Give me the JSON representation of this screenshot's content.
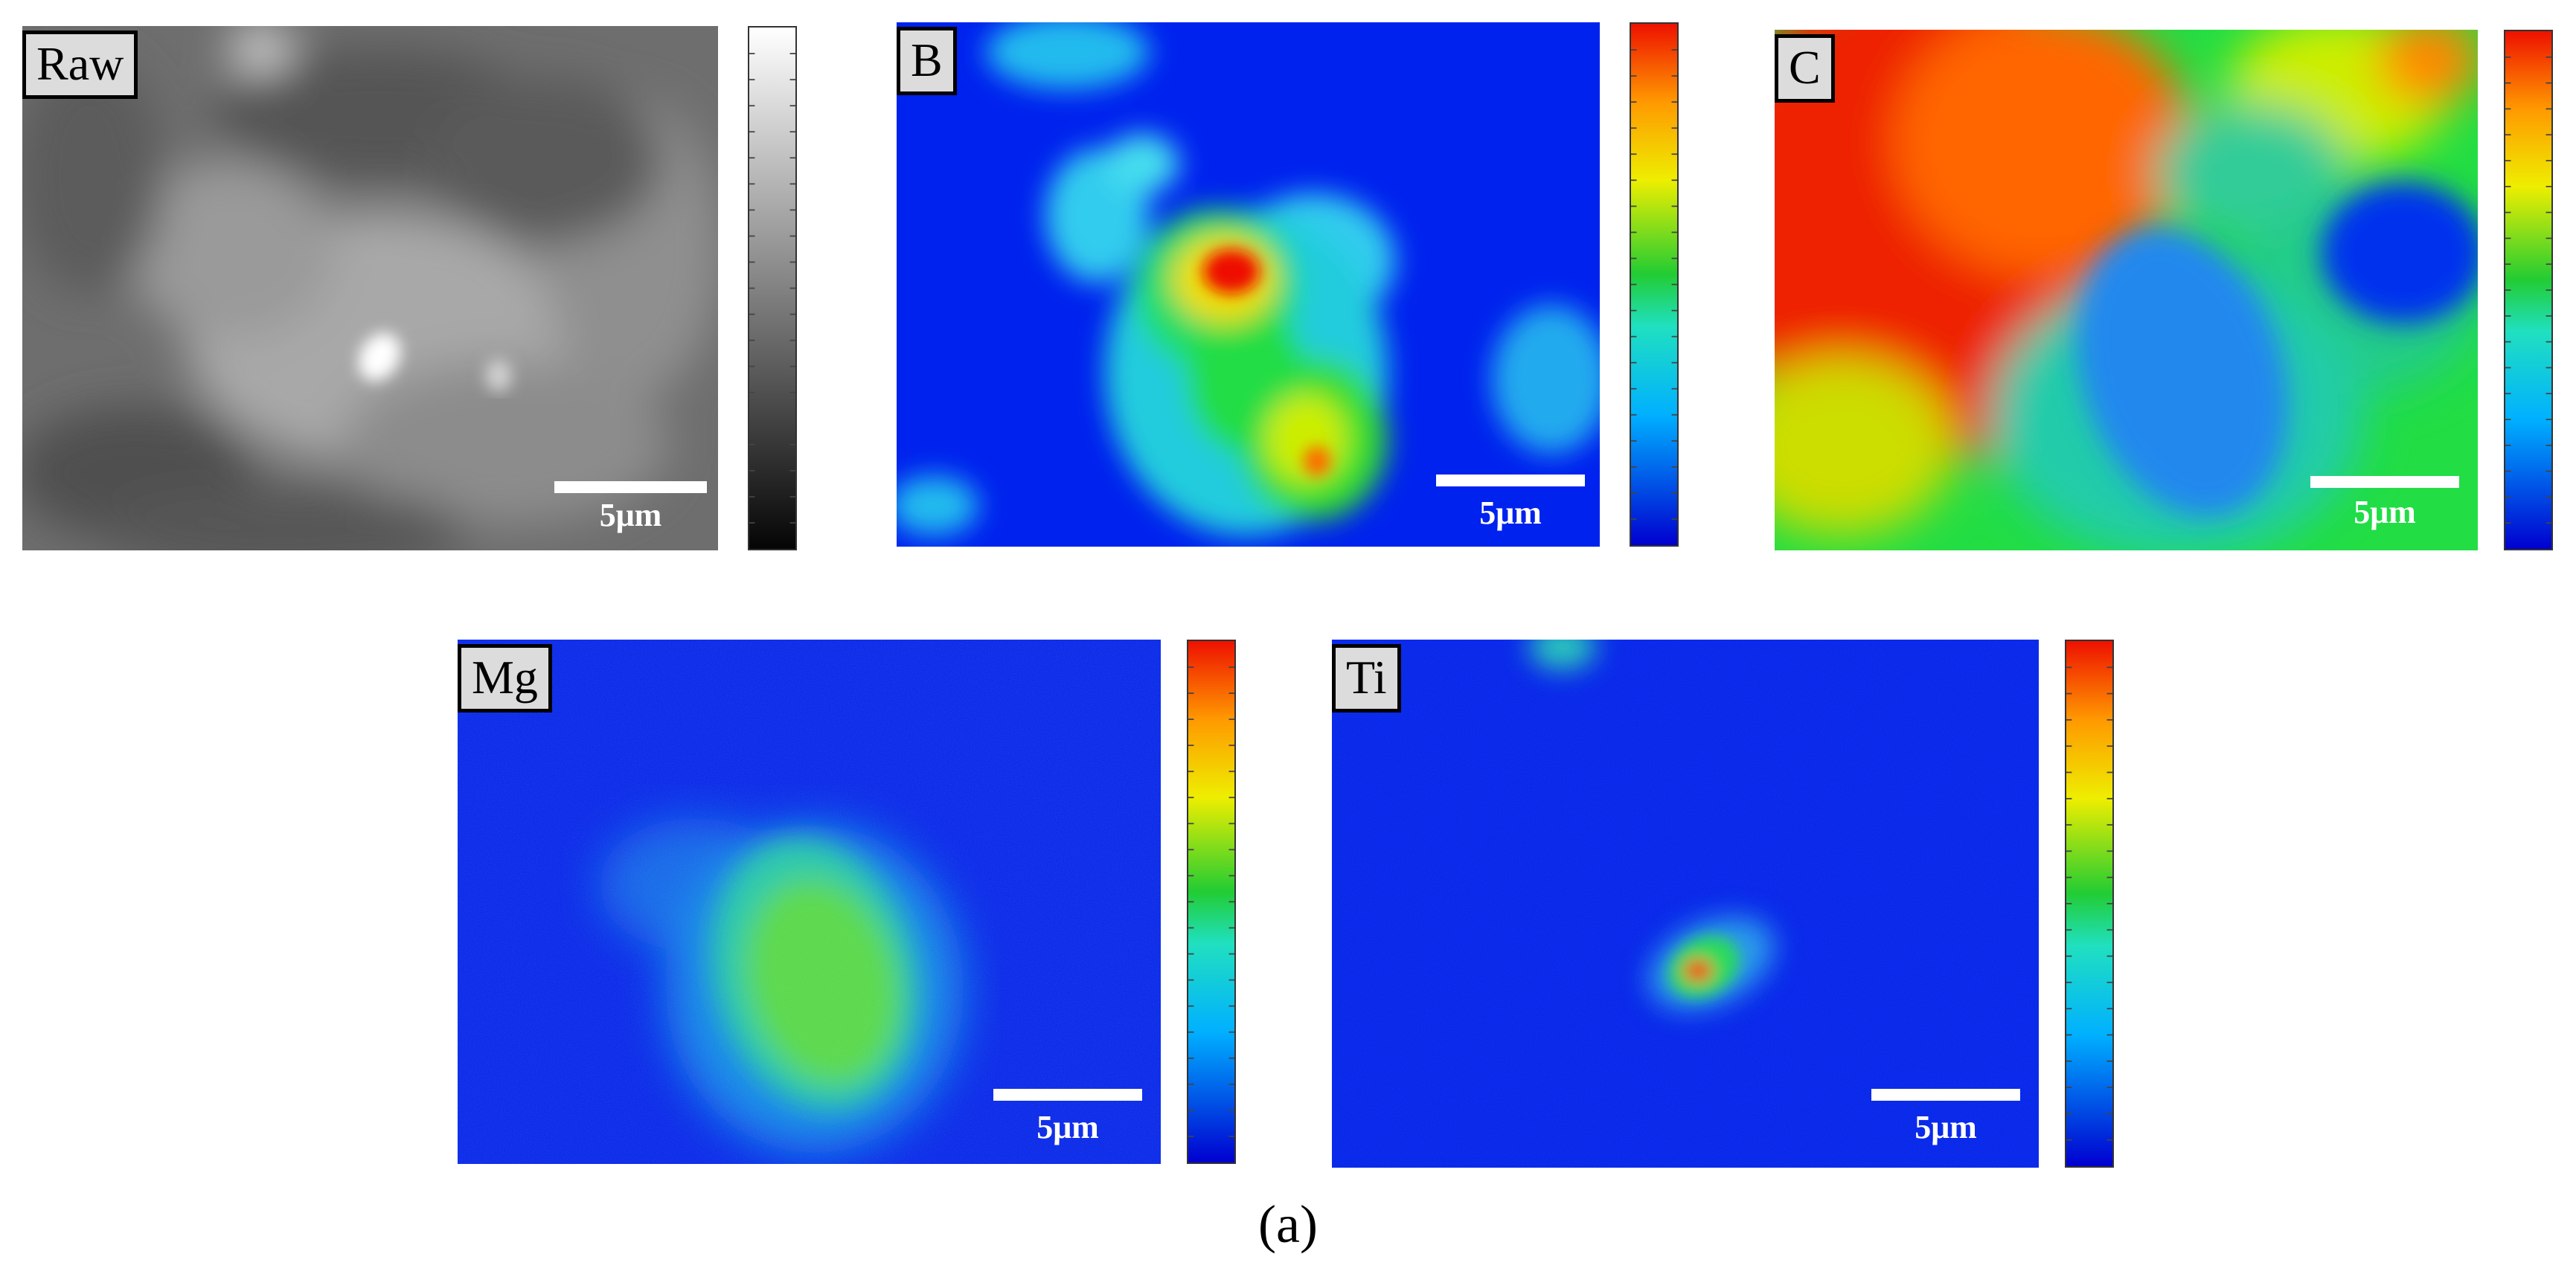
{
  "panels": {
    "raw": {
      "label": "Raw",
      "scale": "5μm"
    },
    "b": {
      "label": "B",
      "scale": "5μm"
    },
    "c": {
      "label": "C",
      "scale": "5μm"
    },
    "mg": {
      "label": "Mg",
      "scale": "5μm"
    },
    "ti": {
      "label": "Ti",
      "scale": "5μm"
    }
  },
  "colors": {
    "jet_blue": "#0022ee",
    "jet_cyan": "#22ddee",
    "jet_green": "#22dd22",
    "jet_yellow": "#eeee00",
    "jet_red": "#ee1100",
    "gray_dark": "#2e2e2e",
    "gray_light": "#f2f2f2"
  },
  "caption": "(a)"
}
